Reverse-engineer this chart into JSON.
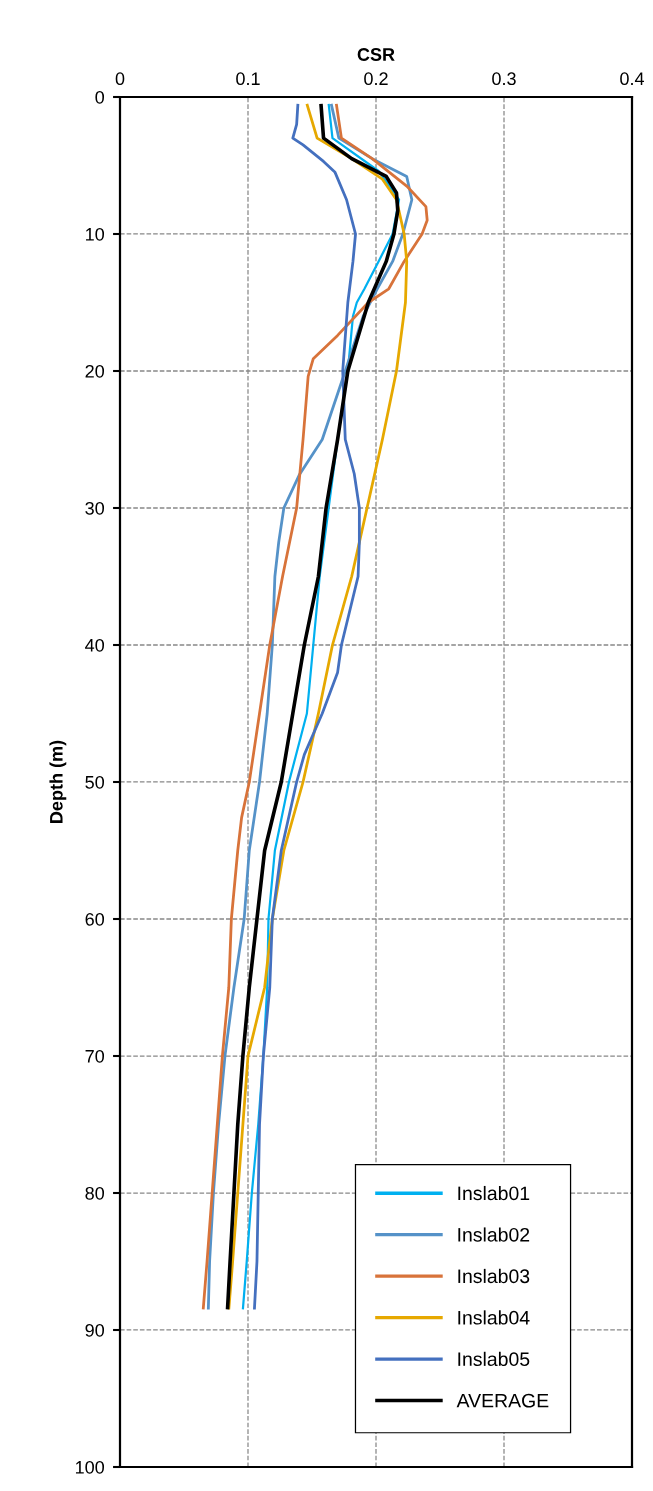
{
  "chart_data": {
    "type": "line",
    "xlabel": "CSR",
    "ylabel": "Depth (m)",
    "xlim": [
      0,
      0.4
    ],
    "xticks": [
      0,
      0.1,
      0.2,
      0.3,
      0.4
    ],
    "ylim": [
      100,
      0
    ],
    "yticks": [
      0,
      10,
      20,
      30,
      40,
      50,
      60,
      70,
      80,
      90,
      100
    ],
    "grid": true,
    "legend": "bottom right",
    "marker": "none",
    "series": [
      {
        "name": "Inslab01",
        "color": "#00b0f0",
        "x": [
          0.163,
          0.166,
          0.202,
          0.218,
          0.213,
          0.202,
          0.191,
          0.185,
          0.182,
          0.178,
          0.17,
          0.163,
          0.156,
          0.151,
          0.146,
          0.132,
          0.121,
          0.116,
          0.115,
          0.112,
          0.108,
          0.103,
          0.099,
          0.096
        ],
        "values": [
          0.5,
          3,
          5.4,
          7.5,
          10,
          12,
          14,
          15,
          16,
          20,
          25,
          30,
          35,
          40,
          45,
          50,
          55,
          60,
          65,
          70,
          75,
          80,
          85,
          88.5
        ]
      },
      {
        "name": "Inslab02",
        "color": "#5592c8",
        "x": [
          0.165,
          0.171,
          0.197,
          0.224,
          0.228,
          0.221,
          0.213,
          0.201,
          0.19,
          0.176,
          0.158,
          0.14,
          0.128,
          0.124,
          0.121,
          0.119,
          0.115,
          0.109,
          0.101,
          0.097,
          0.089,
          0.082,
          0.077,
          0.073,
          0.07,
          0.069
        ],
        "values": [
          0.5,
          3,
          4.5,
          5.8,
          7.5,
          10,
          12,
          14,
          16,
          20,
          25,
          27.6,
          30,
          32.5,
          35,
          40,
          45,
          50,
          55,
          60,
          65,
          70,
          75,
          80,
          85,
          88.5
        ]
      },
      {
        "name": "Inslab03",
        "color": "#d8733a",
        "x": [
          0.169,
          0.173,
          0.197,
          0.224,
          0.239,
          0.24,
          0.236,
          0.222,
          0.21,
          0.194,
          0.17,
          0.151,
          0.147,
          0.145,
          0.143,
          0.138,
          0.127,
          0.117,
          0.109,
          0.101,
          0.095,
          0.092,
          0.087,
          0.085,
          0.08,
          0.076,
          0.072,
          0.068,
          0.065
        ],
        "values": [
          0.5,
          3,
          4.5,
          6.5,
          8,
          9,
          10,
          12,
          14,
          15,
          17.4,
          19.1,
          20.4,
          22.7,
          25,
          30,
          35,
          40,
          45,
          50,
          52.6,
          55,
          60,
          65,
          70,
          75,
          80,
          85,
          88.5
        ]
      },
      {
        "name": "Inslab04",
        "color": "#e6a800",
        "x": [
          0.146,
          0.154,
          0.181,
          0.205,
          0.216,
          0.222,
          0.224,
          0.223,
          0.216,
          0.205,
          0.193,
          0.181,
          0.166,
          0.155,
          0.143,
          0.128,
          0.119,
          0.113,
          0.1,
          0.096,
          0.092,
          0.088,
          0.085
        ],
        "values": [
          0.5,
          3,
          4.5,
          6,
          7.5,
          10,
          12,
          15,
          20,
          25,
          30,
          35,
          40,
          45,
          50,
          55,
          60,
          65,
          70,
          75,
          80,
          85,
          88.5
        ]
      },
      {
        "name": "Inslab05",
        "color": "#4470bf",
        "x": [
          0.139,
          0.138,
          0.135,
          0.143,
          0.159,
          0.168,
          0.177,
          0.184,
          0.182,
          0.178,
          0.174,
          0.176,
          0.183,
          0.187,
          0.187,
          0.186,
          0.173,
          0.17,
          0.158,
          0.144,
          0.138,
          0.126,
          0.119,
          0.117,
          0.112,
          0.109,
          0.108,
          0.107,
          0.105
        ],
        "values": [
          0.5,
          2,
          3,
          3.5,
          4.7,
          5.5,
          7.5,
          10,
          12,
          15,
          20,
          25,
          27.5,
          30,
          32.5,
          35,
          40,
          42,
          45,
          48,
          50,
          55,
          60,
          65,
          70,
          75,
          80,
          85,
          88.5
        ]
      },
      {
        "name": "AVERAGE",
        "color": "#000000",
        "x": [
          0.157,
          0.159,
          0.181,
          0.208,
          0.216,
          0.217,
          0.214,
          0.208,
          0.194,
          0.178,
          0.17,
          0.161,
          0.155,
          0.144,
          0.135,
          0.126,
          0.113,
          0.107,
          0.101,
          0.096,
          0.092,
          0.089,
          0.086,
          0.084
        ],
        "values": [
          0.5,
          3,
          4.5,
          5.8,
          7,
          8.3,
          10,
          12,
          15,
          20,
          25,
          30,
          35,
          40,
          45,
          50,
          55,
          60,
          65,
          70,
          75,
          80,
          85,
          88.5
        ]
      }
    ]
  }
}
